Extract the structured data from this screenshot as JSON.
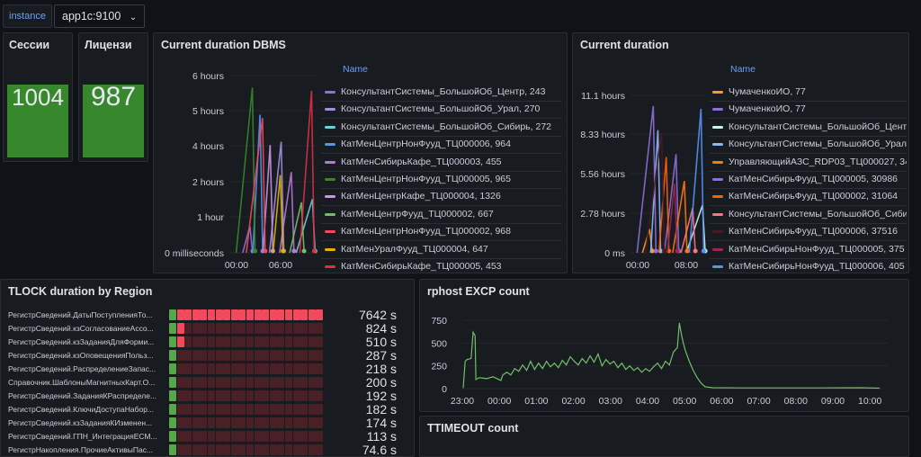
{
  "variables": {
    "label": "instance",
    "value": "app1c:9100"
  },
  "colors": {
    "green": "#56a64b",
    "red": "#f2495c",
    "darkred": "#4a2027",
    "blue": "#6e9fff"
  },
  "stats": [
    {
      "title": "Сессии",
      "value": "1004"
    },
    {
      "title": "Лицензи",
      "value": "987"
    }
  ],
  "dbms": {
    "title": "Current duration DBMS",
    "legend_header": "Name",
    "chart_data": {
      "type": "line",
      "y_ticks": [
        "6 hours",
        "5 hours",
        "4 hours",
        "2 hours",
        "1 hour",
        "0 milliseconds"
      ],
      "x_ticks": [
        "00:00",
        "06:00"
      ]
    },
    "legend": [
      {
        "label": "КонсультантСистемы_БольшойОб_Центр, 243",
        "color": "#8f6fd8"
      },
      {
        "label": "КонсультантСистемы_БольшойОб_Урал, 270",
        "color": "#a48fe0"
      },
      {
        "label": "КонсультантСистемы_БольшойОб_Сибирь, 272",
        "color": "#6ed0e0"
      },
      {
        "label": "КатМенЦентрНонФууд_ТЦ000006, 964",
        "color": "#5794f2"
      },
      {
        "label": "КатМенСибирьКафе_ТЦ000003, 455",
        "color": "#b877d9"
      },
      {
        "label": "КатМенЦентрНонФууд_ТЦ000005, 965",
        "color": "#37872d"
      },
      {
        "label": "КатМенЦентрКафе_ТЦ000004, 1326",
        "color": "#ca95e5"
      },
      {
        "label": "КатМенЦентрФууд_ТЦ000002, 667",
        "color": "#73bf69"
      },
      {
        "label": "КатМенЦентрНонФууд_ТЦ000002, 968",
        "color": "#f2495c"
      },
      {
        "label": "КатМенУралФууд_ТЦ000004, 647",
        "color": "#e0b400"
      },
      {
        "label": "КатМенСибирьКафе_ТЦ000005, 453",
        "color": "#e02f44"
      }
    ]
  },
  "current": {
    "title": "Current duration",
    "legend_header": "Name",
    "chart_data": {
      "type": "line",
      "y_ticks": [
        "11.1 hours",
        "8.33 hours",
        "5.56 hours",
        "2.78 hours",
        "0 ms"
      ],
      "x_ticks": [
        "00:00",
        "08:00"
      ]
    },
    "legend": [
      {
        "label": "ЧумаченкоИО, 77",
        "color": "#ff9830"
      },
      {
        "label": "ЧумаченкоИО, 77",
        "color": "#8f6fd8"
      },
      {
        "label": "КонсультантСистемы_БольшойОб_Цент",
        "color": "#c8f2f7"
      },
      {
        "label": "КонсультантСистемы_БольшойОб_Урал",
        "color": "#8ab8ff"
      },
      {
        "label": "УправляющийАЗС_RDP03_ТЦ000027, 34",
        "color": "#ff780a"
      },
      {
        "label": "КатМенСибирьФууд_ТЦ000005, 30986",
        "color": "#8f6fd8"
      },
      {
        "label": "КатМенСибирьФууд_ТЦ000002, 31064",
        "color": "#fa6400"
      },
      {
        "label": "КонсультантСистемы_БольшойОб_Сиби",
        "color": "#ff7383"
      },
      {
        "label": "КатМенСибирьФууд_ТЦ000006, 37516",
        "color": "#4a1b22"
      },
      {
        "label": "КатМенСибирьНонФууд_ТЦ000005, 375",
        "color": "#9c2659"
      },
      {
        "label": "КатМенСибирьНонФууд_ТЦ000006, 405",
        "color": "#5794f2"
      }
    ]
  },
  "tlock": {
    "title": "TLOCK duration by Region",
    "rows": [
      {
        "label": "РегистрСведений.ДатыПоступленияТо...",
        "value": "7642 s",
        "level": 1.0
      },
      {
        "label": "РегистрСведений.кзСогласованиеАссо...",
        "value": "824 s",
        "level": 0.12
      },
      {
        "label": "РегистрСведений.кзЗаданияДляФорми...",
        "value": "510 s",
        "level": 0.1
      },
      {
        "label": "РегистрСведений.кзОповещенияПольз...",
        "value": "287 s",
        "level": 0.05
      },
      {
        "label": "РегистрСведений.РаспределениеЗапас...",
        "value": "218 s",
        "level": 0.04
      },
      {
        "label": "Справочник.ШаблоныМагнитныхКарт.О...",
        "value": "200 s",
        "level": 0.04
      },
      {
        "label": "РегистрСведений.ЗаданияКРаспределе...",
        "value": "192 s",
        "level": 0.04
      },
      {
        "label": "РегистрСведений.КлючиДоступаНабор...",
        "value": "182 s",
        "level": 0.04
      },
      {
        "label": "РегистрСведений.кзЗаданияКИзменен...",
        "value": "174 s",
        "level": 0.04
      },
      {
        "label": "РегистрСведений.ГПН_ИнтеграцияЕСМ...",
        "value": "113 s",
        "level": 0.04
      },
      {
        "label": "РегистрНакопления.ПрочиеАктивыПас...",
        "value": "74.6 s",
        "level": 0.04
      }
    ]
  },
  "excp": {
    "title": "rphost EXCP count",
    "chart_data": {
      "type": "line",
      "ylim": [
        0,
        750
      ],
      "y_ticks": [
        "750",
        "500",
        "250",
        "0"
      ],
      "x_ticks": [
        "23:00",
        "00:00",
        "01:00",
        "02:00",
        "03:00",
        "04:00",
        "05:00",
        "06:00",
        "07:00",
        "08:00",
        "09:00",
        "10:00"
      ],
      "series": [
        {
          "color": "#73bf69",
          "points": [
            [
              -0.5,
              5
            ],
            [
              -0.45,
              300
            ],
            [
              -0.4,
              320
            ],
            [
              -0.3,
              330
            ],
            [
              -0.25,
              620
            ],
            [
              -0.2,
              580
            ],
            [
              -0.18,
              100
            ],
            [
              -0.1,
              120
            ],
            [
              0.0,
              115
            ],
            [
              0.1,
              110
            ],
            [
              0.25,
              130
            ],
            [
              0.45,
              90
            ],
            [
              0.5,
              150
            ],
            [
              0.6,
              180
            ],
            [
              0.7,
              150
            ],
            [
              0.8,
              220
            ],
            [
              0.9,
              190
            ],
            [
              1.0,
              260
            ],
            [
              1.1,
              200
            ],
            [
              1.2,
              300
            ],
            [
              1.3,
              210
            ],
            [
              1.4,
              280
            ],
            [
              1.5,
              220
            ],
            [
              1.6,
              300
            ],
            [
              1.7,
              240
            ],
            [
              1.8,
              280
            ],
            [
              1.9,
              230
            ],
            [
              2.0,
              310
            ],
            [
              2.1,
              260
            ],
            [
              2.2,
              350
            ],
            [
              2.3,
              300
            ],
            [
              2.4,
              260
            ],
            [
              2.5,
              330
            ],
            [
              2.6,
              280
            ],
            [
              2.7,
              360
            ],
            [
              2.8,
              290
            ],
            [
              2.9,
              380
            ],
            [
              3.0,
              250
            ],
            [
              3.1,
              320
            ],
            [
              3.2,
              270
            ],
            [
              3.3,
              300
            ],
            [
              3.4,
              230
            ],
            [
              3.5,
              280
            ],
            [
              3.6,
              210
            ],
            [
              3.7,
              250
            ],
            [
              3.8,
              200
            ],
            [
              3.9,
              230
            ],
            [
              4.0,
              180
            ],
            [
              4.1,
              220
            ],
            [
              4.2,
              190
            ],
            [
              4.3,
              240
            ],
            [
              4.4,
              280
            ],
            [
              4.5,
              220
            ],
            [
              4.6,
              300
            ],
            [
              4.7,
              260
            ],
            [
              4.8,
              400
            ],
            [
              4.9,
              450
            ],
            [
              4.95,
              720
            ],
            [
              5.0,
              600
            ],
            [
              5.05,
              500
            ],
            [
              5.1,
              420
            ],
            [
              5.2,
              300
            ],
            [
              5.3,
              200
            ],
            [
              5.4,
              120
            ],
            [
              5.5,
              60
            ],
            [
              5.6,
              20
            ],
            [
              5.8,
              10
            ],
            [
              6.5,
              8
            ],
            [
              7.5,
              8
            ],
            [
              8.5,
              8
            ],
            [
              9.5,
              10
            ],
            [
              10.0,
              5
            ]
          ]
        }
      ]
    }
  },
  "ttimeout": {
    "title": "TTIMEOUT count"
  }
}
